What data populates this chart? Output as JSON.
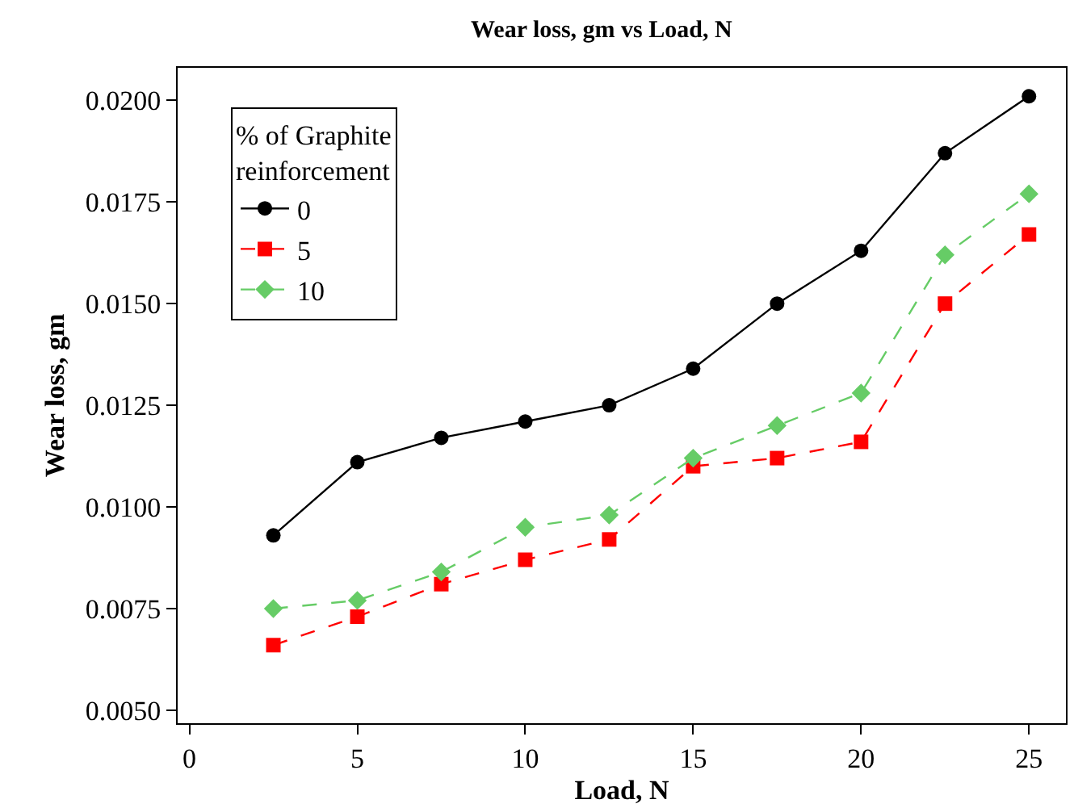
{
  "chart_data": {
    "type": "line",
    "title": "Wear loss, gm vs Load, N",
    "xlabel": "Load, N",
    "ylabel": "Wear loss, gm",
    "legend_title": "% of Graphite reinforcement",
    "legend": "top left",
    "x": [
      2.5,
      5,
      7.5,
      10,
      12.5,
      15,
      17.5,
      20,
      22.5,
      25
    ],
    "xlim": [
      -0.35,
      26.1
    ],
    "xticks": [
      0,
      5,
      10,
      15,
      20,
      25
    ],
    "ylim": [
      0.00468,
      0.0208
    ],
    "yticks": [
      {
        "value": 0.005,
        "label": "0.0050"
      },
      {
        "value": 0.0075,
        "label": "0.0075"
      },
      {
        "value": 0.01,
        "label": "0.0100"
      },
      {
        "value": 0.0125,
        "label": "0.0125"
      },
      {
        "value": 0.015,
        "label": "0.0150"
      },
      {
        "value": 0.0175,
        "label": "0.0175"
      },
      {
        "value": 0.02,
        "label": "0.0200"
      }
    ],
    "series": [
      {
        "name": "0",
        "color": "#000000",
        "marker": "circle",
        "line_style": "solid",
        "values": [
          0.0093,
          0.0111,
          0.0117,
          0.0121,
          0.0125,
          0.0134,
          0.015,
          0.0163,
          0.0187,
          0.0201
        ]
      },
      {
        "name": "5",
        "color": "#ff0000",
        "marker": "square",
        "line_style": "dashed",
        "values": [
          0.0066,
          0.0073,
          0.0081,
          0.0087,
          0.0092,
          0.011,
          0.0112,
          0.0116,
          0.015,
          0.0167
        ]
      },
      {
        "name": "10",
        "color": "#66cc66",
        "marker": "diamond",
        "line_style": "dashed",
        "values": [
          0.0075,
          0.0077,
          0.0084,
          0.0095,
          0.0098,
          0.0112,
          0.012,
          0.0128,
          0.0162,
          0.0177
        ]
      }
    ]
  }
}
